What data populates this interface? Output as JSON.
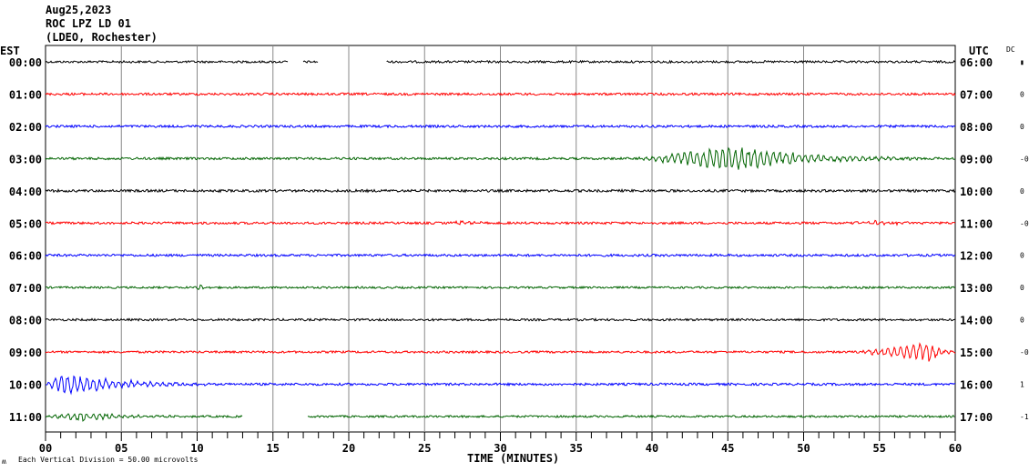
{
  "header": {
    "date": "Aug25,2023",
    "station": "ROC LPZ LD 01",
    "network": "(LDEO, Rochester)"
  },
  "chart_data": {
    "type": "line",
    "title": "ROC LPZ LD 01",
    "left_axis_label": "EST",
    "right_axis_label": "UTC",
    "dc_label": "DC",
    "xlabel": "TIME (MINUTES)",
    "xlim": [
      0,
      60
    ],
    "x_ticks": [
      "00",
      "05",
      "10",
      "15",
      "20",
      "25",
      "30",
      "35",
      "40",
      "45",
      "50",
      "55",
      "60"
    ],
    "scale_note": "Each Vertical Division =   50.00 microvolts",
    "corner_mark": "ʍ",
    "rows": [
      {
        "est": "00:00",
        "utc": "06:00",
        "dc": "▮",
        "color": "#000000",
        "noise": 1.2,
        "segments": [
          [
            0,
            16
          ],
          [
            17,
            18
          ],
          [
            22.5,
            60
          ]
        ],
        "events": []
      },
      {
        "est": "01:00",
        "utc": "07:00",
        "dc": "0",
        "color": "#ff0000",
        "noise": 1.3,
        "segments": [
          [
            0,
            60
          ]
        ],
        "events": []
      },
      {
        "est": "02:00",
        "utc": "08:00",
        "dc": "0",
        "color": "#0000ff",
        "noise": 1.3,
        "segments": [
          [
            0,
            60
          ]
        ],
        "events": []
      },
      {
        "est": "03:00",
        "utc": "09:00",
        "dc": "-0",
        "color": "#006400",
        "noise": 1.3,
        "segments": [
          [
            0,
            60
          ]
        ],
        "events": [
          {
            "start": 39,
            "peak": 45.3,
            "end": 58,
            "amp": 15
          }
        ]
      },
      {
        "est": "04:00",
        "utc": "10:00",
        "dc": "0",
        "color": "#000000",
        "noise": 1.4,
        "segments": [
          [
            0,
            60
          ]
        ],
        "events": []
      },
      {
        "est": "05:00",
        "utc": "11:00",
        "dc": "-0",
        "color": "#ff0000",
        "noise": 1.3,
        "segments": [
          [
            0,
            60
          ]
        ],
        "events": [
          {
            "start": 26.5,
            "peak": 27.5,
            "end": 30,
            "amp": 2.5
          },
          {
            "start": 53,
            "peak": 55,
            "end": 58,
            "amp": 2.5
          }
        ]
      },
      {
        "est": "06:00",
        "utc": "12:00",
        "dc": "0",
        "color": "#0000ff",
        "noise": 1.3,
        "segments": [
          [
            0,
            60
          ]
        ],
        "events": []
      },
      {
        "est": "07:00",
        "utc": "13:00",
        "dc": "0",
        "color": "#006400",
        "noise": 1.1,
        "segments": [
          [
            0,
            60
          ]
        ],
        "events": [
          {
            "start": 9.7,
            "peak": 10.2,
            "end": 11,
            "amp": 3
          }
        ]
      },
      {
        "est": "08:00",
        "utc": "14:00",
        "dc": "0",
        "color": "#000000",
        "noise": 1.2,
        "segments": [
          [
            0,
            60
          ]
        ],
        "events": []
      },
      {
        "est": "09:00",
        "utc": "15:00",
        "dc": "-0",
        "color": "#ff0000",
        "noise": 1.2,
        "segments": [
          [
            0,
            60
          ]
        ],
        "events": [
          {
            "start": 53.5,
            "peak": 58.5,
            "end": 60,
            "amp": 11
          }
        ]
      },
      {
        "est": "10:00",
        "utc": "16:00",
        "dc": "1",
        "color": "#0000ff",
        "noise": 1.3,
        "segments": [
          [
            0,
            60
          ]
        ],
        "events": [
          {
            "start": 0,
            "peak": 1.2,
            "end": 11,
            "amp": 14
          }
        ]
      },
      {
        "est": "11:00",
        "utc": "17:00",
        "dc": "-1",
        "color": "#006400",
        "noise": 1.1,
        "segments": [
          [
            0,
            13
          ],
          [
            17.3,
            60
          ]
        ],
        "events": [
          {
            "start": 0,
            "peak": 2.5,
            "end": 10,
            "amp": 5
          }
        ]
      }
    ]
  }
}
